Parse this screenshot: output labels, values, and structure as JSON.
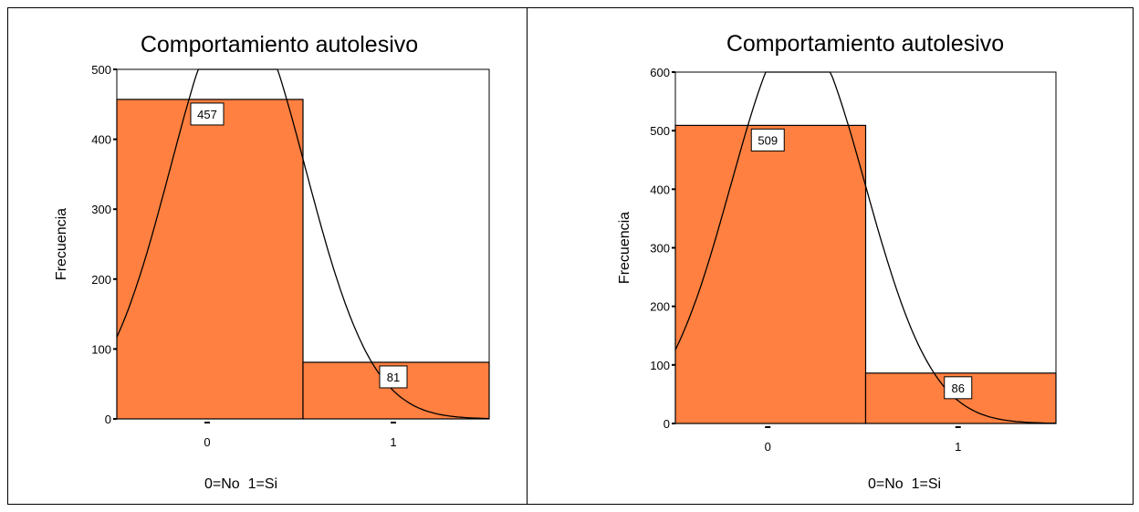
{
  "colors": {
    "bar": "#FF8040",
    "stroke": "#000000",
    "background": "#FFFFFF"
  },
  "chart_data": [
    {
      "type": "bar",
      "title": "Comportamiento autolesivo",
      "xlabel": "0=No  1=Si",
      "ylabel": "Frecuencia",
      "categories": [
        "0",
        "1"
      ],
      "values": [
        457,
        81
      ],
      "data_labels": [
        "457",
        "81"
      ],
      "ylim": [
        0,
        500
      ],
      "yticks": [
        0,
        100,
        200,
        300,
        400,
        500
      ],
      "ytick_labels": [
        "0",
        "100",
        "200",
        "300",
        "400",
        "500"
      ],
      "normal_curve": {
        "mean": 0.15,
        "sd": 0.36,
        "n": 538
      },
      "grid": false,
      "legend": false
    },
    {
      "type": "bar",
      "title": "Comportamiento autolesivo",
      "xlabel": "0=No  1=Si",
      "ylabel": "Frecuencia",
      "categories": [
        "0",
        "1"
      ],
      "values": [
        509,
        86
      ],
      "data_labels": [
        "509",
        "86"
      ],
      "ylim": [
        0,
        600
      ],
      "yticks": [
        0,
        100,
        200,
        300,
        400,
        500,
        600
      ],
      "ytick_labels": [
        "0",
        "100",
        "200",
        "300",
        "400",
        "500",
        "600"
      ],
      "normal_curve": {
        "mean": 0.145,
        "sd": 0.352,
        "n": 595
      },
      "grid": false,
      "legend": false
    }
  ]
}
